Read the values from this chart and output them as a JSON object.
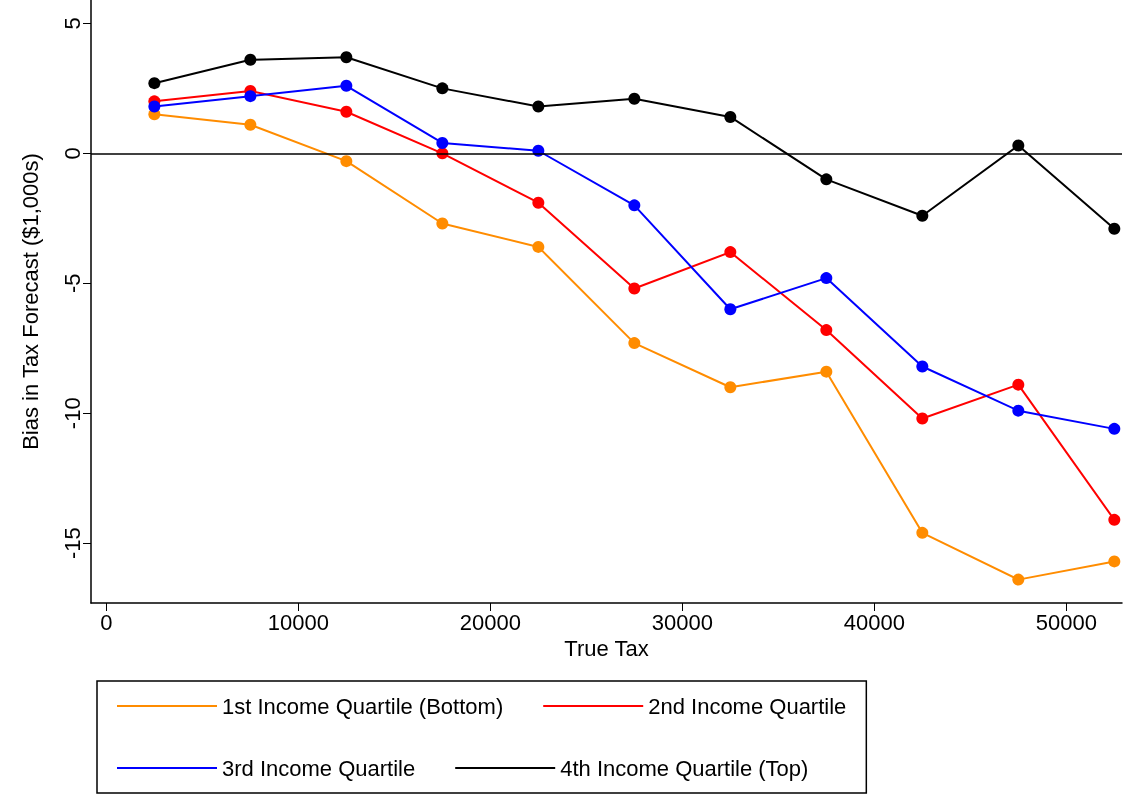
{
  "chart_data": {
    "type": "line",
    "xlabel": "True Tax",
    "ylabel": "Bias in Tax Forecast ($1,000s)",
    "x": [
      2500,
      7500,
      12500,
      17500,
      22500,
      27500,
      32500,
      37500,
      42500,
      47500,
      52500
    ],
    "series": [
      {
        "name": "1st Income Quartile (Bottom)",
        "color": "#ff8c00",
        "values": [
          1.5,
          1.1,
          -0.3,
          -2.7,
          -3.6,
          -7.3,
          -9.0,
          -8.4,
          -14.6,
          -16.4,
          -15.7
        ]
      },
      {
        "name": "2nd Income Quartile",
        "color": "#ff0000",
        "values": [
          2.0,
          2.4,
          1.6,
          0,
          -1.9,
          -5.2,
          -3.8,
          -6.8,
          -10.2,
          -8.9,
          -14.1
        ]
      },
      {
        "name": "3rd Income Quartile",
        "color": "#0000ff",
        "values": [
          1.8,
          2.2,
          2.6,
          0.4,
          0.1,
          -2.0,
          -6.0,
          -4.8,
          -8.2,
          -9.9,
          -10.6
        ]
      },
      {
        "name": "4th Income Quartile (Top)",
        "color": "#000000",
        "values": [
          2.7,
          3.6,
          3.7,
          2.5,
          1.8,
          2.1,
          1.4,
          -1.0,
          -2.4,
          0.3,
          -2.9
        ]
      }
    ],
    "xlim": [
      -800,
      52900
    ],
    "xticks": [
      0,
      10000,
      20000,
      30000,
      40000,
      50000
    ],
    "ylim": [
      -17.3,
      5.9
    ],
    "yticks": [
      -15,
      -10,
      -5,
      0,
      5
    ],
    "ref_lines": [
      {
        "axis": "y",
        "value": 0,
        "color": "#000000"
      }
    ],
    "grid": false,
    "legend": "bottom",
    "marker": "circle",
    "line_style": "solid"
  }
}
